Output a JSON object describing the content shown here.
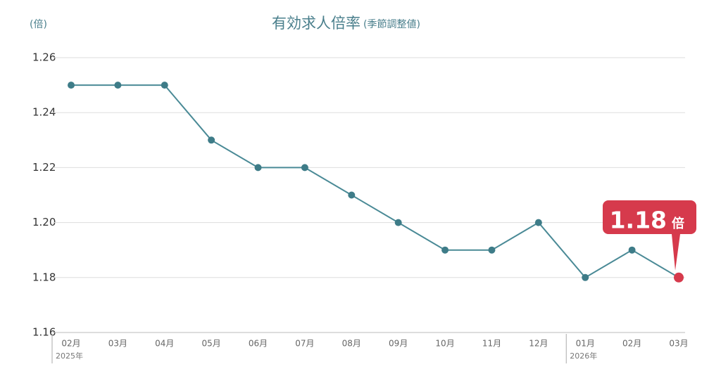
{
  "chart_data": {
    "type": "line",
    "title": "有効求人倍率",
    "subtitle": "(季節調整値)",
    "y_unit": "(倍)",
    "categories": [
      "02月",
      "03月",
      "04月",
      "05月",
      "06月",
      "07月",
      "08月",
      "09月",
      "10月",
      "11月",
      "12月",
      "01月",
      "02月",
      "03月"
    ],
    "year_labels": [
      {
        "index": 0,
        "label": "2025年"
      },
      {
        "index": 11,
        "label": "2026年"
      }
    ],
    "series": [
      {
        "name": "有効求人倍率",
        "color": "#4a8a96",
        "values": [
          1.25,
          1.25,
          1.25,
          1.23,
          1.22,
          1.22,
          1.21,
          1.2,
          1.19,
          1.19,
          1.2,
          1.18,
          1.19,
          1.18
        ]
      }
    ],
    "ylim": [
      1.16,
      1.26
    ],
    "yticks": [
      1.16,
      1.18,
      {
        "value": 1.2,
        "label": "1.20"
      },
      1.22,
      1.24,
      1.26
    ],
    "grid": true,
    "callout": {
      "text": "1.18",
      "unit": "倍",
      "color": "#d63a4c"
    }
  }
}
